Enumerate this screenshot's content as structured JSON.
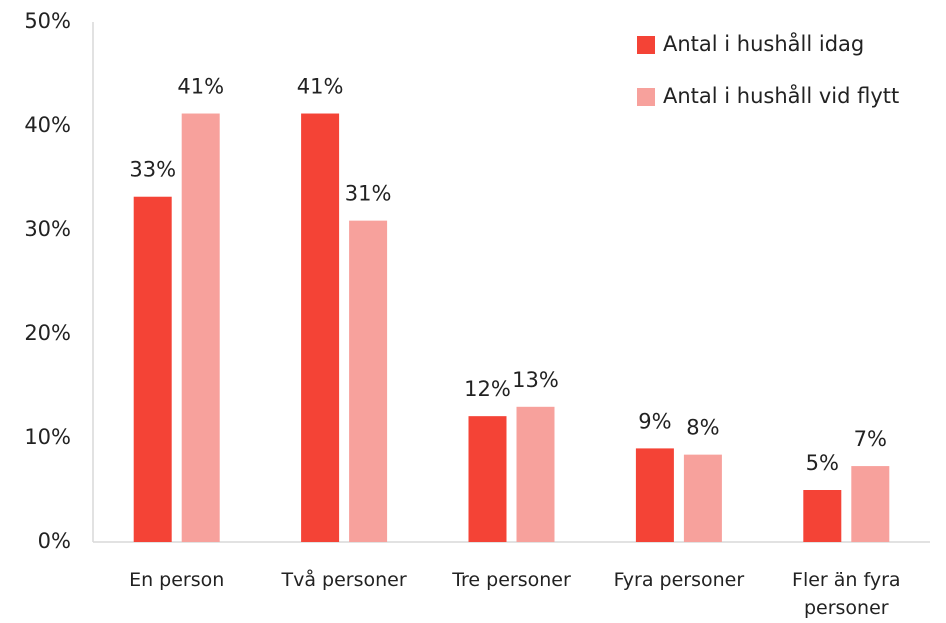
{
  "chart_data": {
    "type": "bar",
    "categories": [
      "En person",
      "Två personer",
      "Tre personer",
      "Fyra personer",
      "Fler än fyra personer"
    ],
    "series": [
      {
        "name": "Antal i hushåll idag",
        "color": "#f44336",
        "values": [
          33.2,
          41.2,
          12.1,
          9.0,
          5.0
        ],
        "value_labels": [
          "33%",
          "41%",
          "12%",
          "9%",
          "5%"
        ]
      },
      {
        "name": "Antal i hushåll vid flytt",
        "color": "#f7a19c",
        "values": [
          41.2,
          30.9,
          13.0,
          8.4,
          7.3
        ],
        "value_labels": [
          "41%",
          "31%",
          "13%",
          "8%",
          "7%"
        ]
      }
    ],
    "ylim": [
      0,
      50
    ],
    "yticks": [
      {
        "value": 0,
        "label": "0%"
      },
      {
        "value": 10,
        "label": "10%"
      },
      {
        "value": 20,
        "label": "20%"
      },
      {
        "value": 30,
        "label": "30%"
      },
      {
        "value": 40,
        "label": "40%"
      },
      {
        "value": 50,
        "label": "50%"
      }
    ],
    "grid": false,
    "legend": "upper right"
  }
}
